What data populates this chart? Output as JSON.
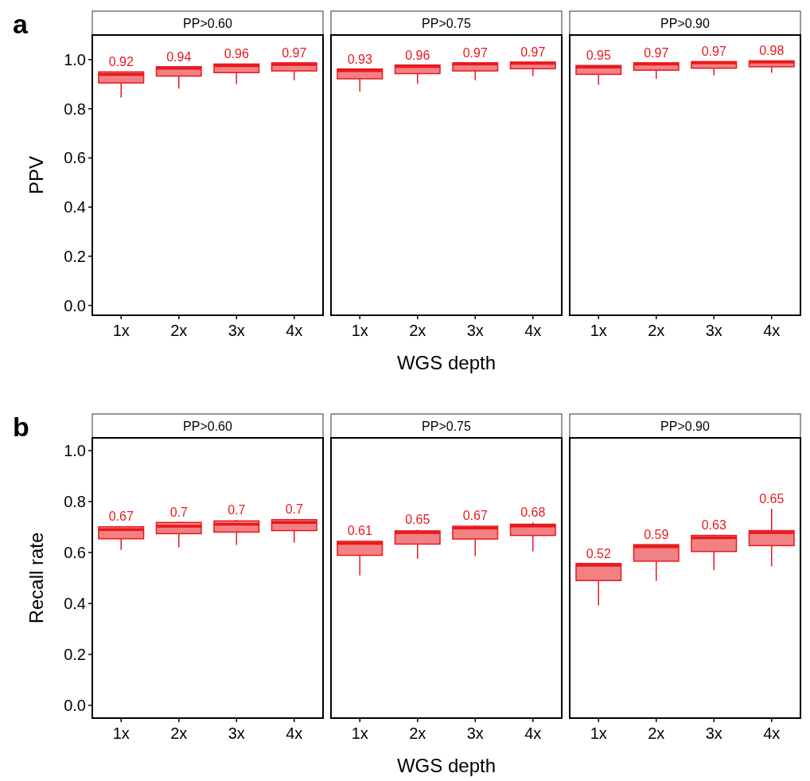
{
  "chart_data": [
    {
      "type": "box",
      "title": "PP>0.60",
      "ylabel": "PPV",
      "annotations": [
        "a"
      ],
      "categories": [
        "1x",
        "2x",
        "3x",
        "4x"
      ],
      "color": "#e8191e",
      "ylim": [
        -0.04,
        1.1
      ],
      "yticks": [
        {
          "value": 0,
          "label": "0.0"
        },
        {
          "value": 0.2,
          "label": "0.2"
        },
        {
          "value": 0.4,
          "label": "0.4"
        },
        {
          "value": 0.6,
          "label": "0.6"
        },
        {
          "value": 0.8,
          "label": "0.8"
        },
        {
          "value": 1,
          "label": "1.0"
        }
      ],
      "value_labels": [
        "0.92",
        "0.94",
        "0.96",
        "0.97"
      ],
      "boxes": [
        {
          "low": 0.846,
          "q1": 0.905,
          "median": 0.94,
          "q3": 0.95,
          "high": 0.95
        },
        {
          "low": 0.882,
          "q1": 0.933,
          "median": 0.965,
          "q3": 0.971,
          "high": 0.971
        },
        {
          "low": 0.9,
          "q1": 0.947,
          "median": 0.975,
          "q3": 0.982,
          "high": 0.982
        },
        {
          "low": 0.916,
          "q1": 0.954,
          "median": 0.98,
          "q3": 0.987,
          "high": 0.987
        }
      ]
    },
    {
      "type": "box",
      "title": "PP>0.75",
      "xlabel": "WGS depth",
      "tick_labels": "x",
      "categories": [
        "1x",
        "2x",
        "3x",
        "4x"
      ],
      "color": "#e8191e",
      "ylim": [
        -0.04,
        1.1
      ],
      "value_labels": [
        "0.93",
        "0.96",
        "0.97",
        "0.97"
      ],
      "boxes": [
        {
          "low": 0.87,
          "q1": 0.922,
          "median": 0.955,
          "q3": 0.962,
          "high": 0.962
        },
        {
          "low": 0.902,
          "q1": 0.943,
          "median": 0.972,
          "q3": 0.978,
          "high": 0.978
        },
        {
          "low": 0.916,
          "q1": 0.954,
          "median": 0.982,
          "q3": 0.987,
          "high": 0.987
        },
        {
          "low": 0.932,
          "q1": 0.963,
          "median": 0.985,
          "q3": 0.99,
          "high": 0.99
        }
      ]
    },
    {
      "type": "box",
      "title": "PP>0.90",
      "tick_labels": "x",
      "categories": [
        "1x",
        "2x",
        "3x",
        "4x"
      ],
      "color": "#e8191e",
      "ylim": [
        -0.04,
        1.1
      ],
      "value_labels": [
        "0.95",
        "0.97",
        "0.97",
        "0.98"
      ],
      "boxes": [
        {
          "low": 0.897,
          "q1": 0.94,
          "median": 0.97,
          "q3": 0.976,
          "high": 0.976
        },
        {
          "low": 0.922,
          "q1": 0.957,
          "median": 0.982,
          "q3": 0.987,
          "high": 0.987
        },
        {
          "low": 0.936,
          "q1": 0.965,
          "median": 0.987,
          "q3": 0.992,
          "high": 0.992
        },
        {
          "low": 0.946,
          "q1": 0.971,
          "median": 0.99,
          "q3": 0.995,
          "high": 0.995
        }
      ]
    },
    {
      "type": "box",
      "title": "PP>0.60",
      "ylabel": "Recall rate",
      "annotations": [
        "b"
      ],
      "categories": [
        "1x",
        "2x",
        "3x",
        "4x"
      ],
      "color": "#e8191e",
      "ylim": [
        -0.05,
        1.05
      ],
      "yticks": [
        {
          "value": 0,
          "label": "0.0"
        },
        {
          "value": 0.2,
          "label": "0.2"
        },
        {
          "value": 0.4,
          "label": "0.4"
        },
        {
          "value": 0.6,
          "label": "0.6"
        },
        {
          "value": 0.8,
          "label": "0.8"
        },
        {
          "value": 1,
          "label": "1.0"
        }
      ],
      "value_labels": [
        "0.67",
        "0.7",
        "0.7",
        "0.7"
      ],
      "boxes": [
        {
          "low": 0.61,
          "q1": 0.654,
          "median": 0.69,
          "q3": 0.701,
          "high": 0.703
        },
        {
          "low": 0.62,
          "q1": 0.674,
          "median": 0.703,
          "q3": 0.718,
          "high": 0.72
        },
        {
          "low": 0.63,
          "q1": 0.68,
          "median": 0.711,
          "q3": 0.724,
          "high": 0.728
        },
        {
          "low": 0.639,
          "q1": 0.686,
          "median": 0.718,
          "q3": 0.729,
          "high": 0.732
        }
      ]
    },
    {
      "type": "box",
      "title": "PP>0.75",
      "xlabel": "WGS depth",
      "tick_labels": "x",
      "categories": [
        "1x",
        "2x",
        "3x",
        "4x"
      ],
      "color": "#e8191e",
      "ylim": [
        -0.05,
        1.05
      ],
      "value_labels": [
        "0.61",
        "0.65",
        "0.67",
        "0.68"
      ],
      "boxes": [
        {
          "low": 0.51,
          "q1": 0.589,
          "median": 0.636,
          "q3": 0.644,
          "high": 0.646
        },
        {
          "low": 0.576,
          "q1": 0.633,
          "median": 0.678,
          "q3": 0.685,
          "high": 0.69
        },
        {
          "low": 0.586,
          "q1": 0.653,
          "median": 0.696,
          "q3": 0.703,
          "high": 0.707
        },
        {
          "low": 0.604,
          "q1": 0.667,
          "median": 0.704,
          "q3": 0.711,
          "high": 0.718
        }
      ]
    },
    {
      "type": "box",
      "title": "PP>0.90",
      "tick_labels": "x",
      "categories": [
        "1x",
        "2x",
        "3x",
        "4x"
      ],
      "color": "#e8191e",
      "ylim": [
        -0.05,
        1.05
      ],
      "value_labels": [
        "0.52",
        "0.59",
        "0.63",
        "0.65"
      ],
      "boxes": [
        {
          "low": 0.392,
          "q1": 0.49,
          "median": 0.55,
          "q3": 0.557,
          "high": 0.557
        },
        {
          "low": 0.488,
          "q1": 0.566,
          "median": 0.623,
          "q3": 0.631,
          "high": 0.631
        },
        {
          "low": 0.531,
          "q1": 0.604,
          "median": 0.658,
          "q3": 0.667,
          "high": 0.67
        },
        {
          "low": 0.545,
          "q1": 0.627,
          "median": 0.678,
          "q3": 0.686,
          "high": 0.771
        }
      ]
    }
  ]
}
